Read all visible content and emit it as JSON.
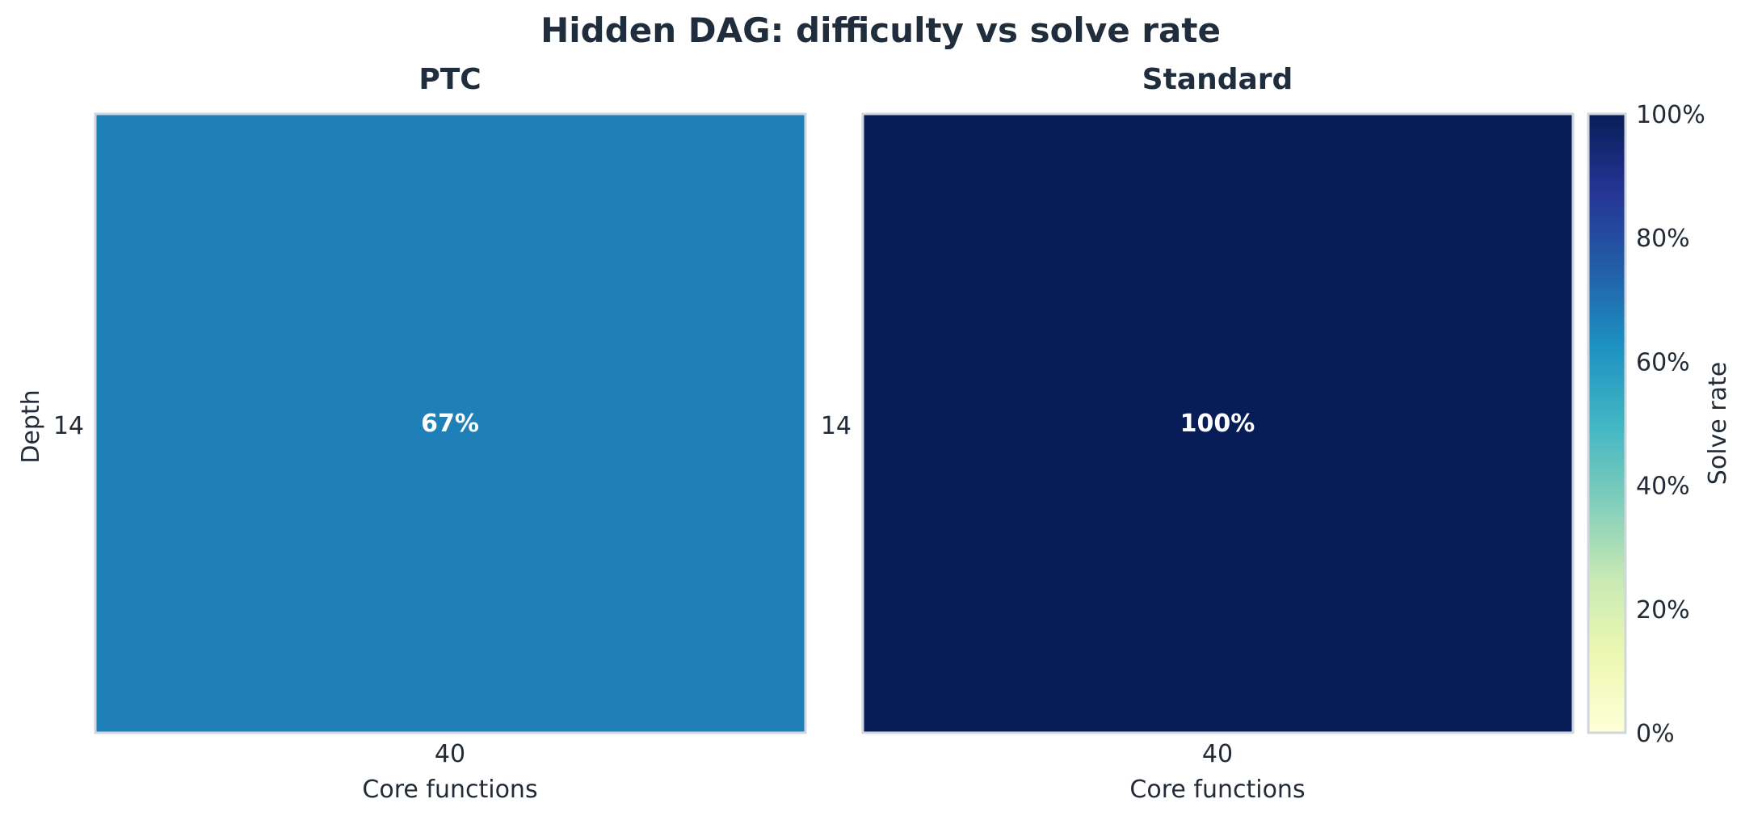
{
  "title": "Hidden DAG: difficulty vs solve rate",
  "chart_data": [
    {
      "type": "heatmap",
      "title": "PTC",
      "xlabel": "Core functions",
      "ylabel": "Depth",
      "x_categories": [
        "40"
      ],
      "y_categories": [
        "14"
      ],
      "values": [
        [
          0.67
        ]
      ],
      "cell_labels": [
        [
          "67%"
        ]
      ],
      "color": "#1f80b8"
    },
    {
      "type": "heatmap",
      "title": "Standard",
      "xlabel": "Core functions",
      "ylabel": "",
      "x_categories": [
        "40"
      ],
      "y_categories": [
        "14"
      ],
      "values": [
        [
          1.0
        ]
      ],
      "cell_labels": [
        [
          "100%"
        ]
      ],
      "color": "#081d58"
    }
  ],
  "colorbar": {
    "label": "Solve rate",
    "colormap": "YlGnBu",
    "range": [
      0,
      1
    ],
    "ticks": [
      "0%",
      "20%",
      "40%",
      "60%",
      "80%",
      "100%"
    ],
    "stops": [
      "#ffffd9",
      "#edf8b1",
      "#c7e9b4",
      "#7fcdbb",
      "#41b6c4",
      "#1d91c0",
      "#225ea8",
      "#253494",
      "#081d58"
    ]
  }
}
